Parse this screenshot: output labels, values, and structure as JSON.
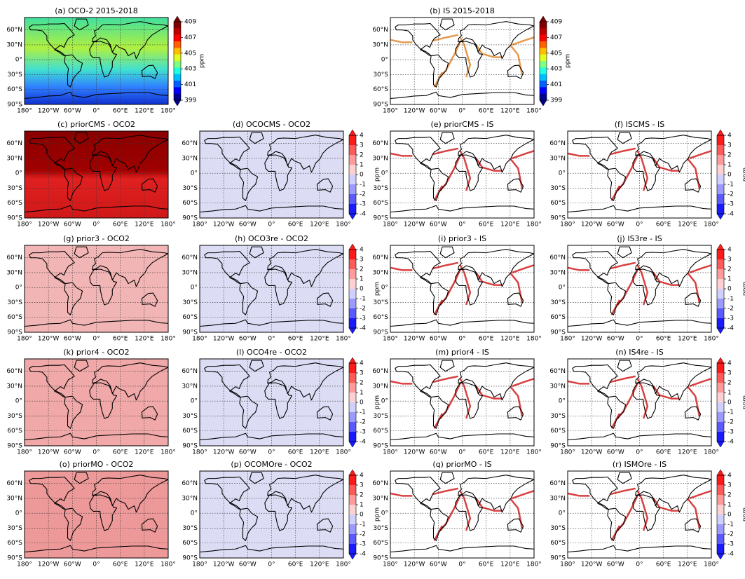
{
  "map_axes": {
    "lat_labels": [
      "60°N",
      "30°N",
      "0°",
      "30°S",
      "60°S",
      "90°S"
    ],
    "lon_labels": [
      "180°",
      "120°W",
      "60°W",
      "0°",
      "60°E",
      "120°E",
      "180°"
    ]
  },
  "panels": [
    {
      "title": "(a) OCO-2 2015-2018",
      "colorbar": {
        "ticks": [
          409,
          407,
          405,
          403,
          401,
          399
        ],
        "label": "ppm"
      }
    },
    {
      "title": "(b) IS 2015-2018",
      "colorbar": {
        "ticks": [
          409,
          407,
          405,
          403,
          401,
          399
        ],
        "label": "ppm"
      }
    },
    {
      "title": "(c) priorCMS - OCO2"
    },
    {
      "title": "(d) OCOCMS - OCO2",
      "colorbar": {
        "ticks": [
          4,
          3,
          2,
          1,
          0,
          -1,
          -2,
          -3,
          -4
        ],
        "label": "ppm"
      }
    },
    {
      "title": "(e) priorCMS - IS"
    },
    {
      "title": "(f) ISCMS - IS",
      "colorbar": {
        "ticks": [
          4,
          3,
          2,
          1,
          0,
          -1,
          -2,
          -3,
          -4
        ],
        "label": "ppm"
      }
    },
    {
      "title": "(g) prior3 - OCO2"
    },
    {
      "title": "(h) OCO3re - OCO2",
      "colorbar": {
        "ticks": [
          4,
          3,
          2,
          1,
          0,
          -1,
          -2,
          -3,
          -4
        ],
        "label": "ppm"
      }
    },
    {
      "title": "(i) prior3 - IS"
    },
    {
      "title": "(j) IS3re - IS",
      "colorbar": {
        "ticks": [
          4,
          3,
          2,
          1,
          0,
          -1,
          -2,
          -3,
          -4
        ],
        "label": "ppm"
      }
    },
    {
      "title": "(k) prior4 - OCO2"
    },
    {
      "title": "(l) OCO4re - OCO2",
      "colorbar": {
        "ticks": [
          4,
          3,
          2,
          1,
          0,
          -1,
          -2,
          -3,
          -4
        ],
        "label": "ppm"
      }
    },
    {
      "title": "(m) prior4 - IS"
    },
    {
      "title": "(n) IS4re - IS",
      "colorbar": {
        "ticks": [
          4,
          3,
          2,
          1,
          0,
          -1,
          -2,
          -3,
          -4
        ],
        "label": "ppm"
      }
    },
    {
      "title": "(o) priorMO - OCO2"
    },
    {
      "title": "(p) OCOMOre - OCO2",
      "colorbar": {
        "ticks": [
          4,
          3,
          2,
          1,
          0,
          -1,
          -2,
          -3,
          -4
        ],
        "label": "ppm"
      }
    },
    {
      "title": "(q) priorMO - IS"
    },
    {
      "title": "(r) ISMOre - IS",
      "colorbar": {
        "ticks": [
          4,
          3,
          2,
          1,
          0,
          -1,
          -2,
          -3,
          -4
        ],
        "label": "ppm"
      }
    }
  ]
}
